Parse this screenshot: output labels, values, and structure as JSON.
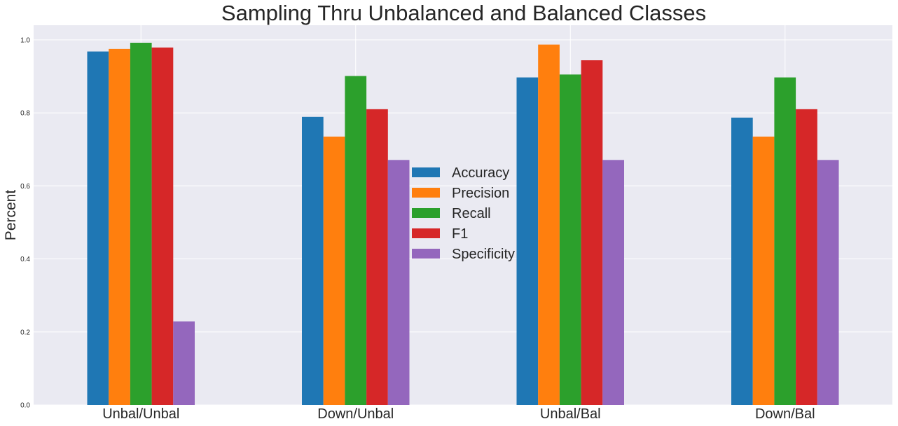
{
  "chart_data": {
    "type": "bar",
    "title": "Sampling Thru Unbalanced and Balanced Classes",
    "xlabel": "",
    "ylabel": "Percent",
    "categories": [
      "Unbal/Unbal",
      "Down/Unbal",
      "Unbal/Bal",
      "Down/Bal"
    ],
    "series": [
      {
        "name": "Accuracy",
        "color": "#1f77b4",
        "values": [
          0.968,
          0.789,
          0.897,
          0.787
        ]
      },
      {
        "name": "Precision",
        "color": "#ff7f0e",
        "values": [
          0.975,
          0.735,
          0.987,
          0.735
        ]
      },
      {
        "name": "Recall",
        "color": "#2ca02c",
        "values": [
          0.992,
          0.901,
          0.905,
          0.897
        ]
      },
      {
        "name": "F1",
        "color": "#d62728",
        "values": [
          0.979,
          0.81,
          0.944,
          0.81
        ]
      },
      {
        "name": "Specificity",
        "color": "#9467bd",
        "values": [
          0.229,
          0.671,
          0.671,
          0.671
        ]
      }
    ],
    "yticks": [
      "0.0",
      "0.2",
      "0.4",
      "0.6",
      "0.8",
      "1.0"
    ],
    "ylim": [
      0,
      1.04
    ],
    "grid": true,
    "legend_position": "center",
    "background": "#eaeaf2"
  }
}
